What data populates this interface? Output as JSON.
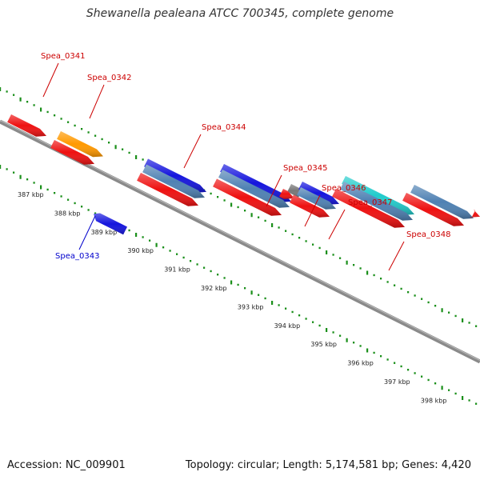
{
  "title": "Shewanella pealeana ATCC 700345, complete genome",
  "footer": {
    "accession": "Accession: NC_009901",
    "summary": "Topology: circular; Length: 5,174,581 bp; Genes: 4,420"
  },
  "colors": {
    "backbone": "#8a8a8a",
    "tick": "#1a8f1a",
    "label_forward": "#cc0000",
    "label_reverse": "#0000cc",
    "red": "#ee1111",
    "orange": "#ff9900",
    "blue": "#1515dd",
    "steel": "#4f81b3",
    "cyan": "#22cccc",
    "gray": "#777777"
  },
  "ticks": [
    "387 kbp",
    "388 kbp",
    "389 kbp",
    "390 kbp",
    "391 kbp",
    "392 kbp",
    "393 kbp",
    "394 kbp",
    "395 kbp",
    "396 kbp",
    "397 kbp",
    "398 kbp"
  ],
  "gene_labels": [
    {
      "text": "Spea_0341",
      "strand": "forward"
    },
    {
      "text": "Spea_0342",
      "strand": "forward"
    },
    {
      "text": "Spea_0343",
      "strand": "reverse"
    },
    {
      "text": "Spea_0344",
      "strand": "forward"
    },
    {
      "text": "Spea_0345",
      "strand": "forward"
    },
    {
      "text": "Spea_0346",
      "strand": "forward"
    },
    {
      "text": "Spea_0347",
      "strand": "forward"
    },
    {
      "text": "Spea_0348",
      "strand": "forward"
    }
  ]
}
